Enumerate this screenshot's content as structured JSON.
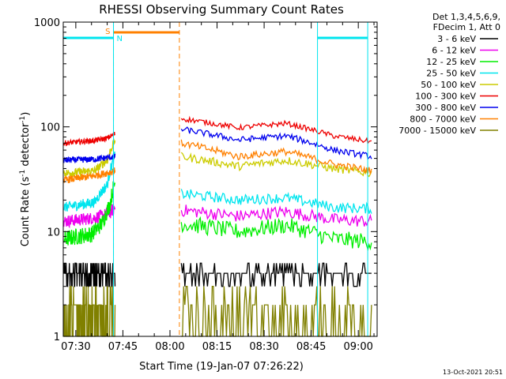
{
  "chart_data": {
    "type": "line",
    "title": "RHESSI Observing Summary Count Rates",
    "xlabel": "Start Time (19-Jan-07 07:26:22)",
    "ylabel_parts": [
      "Count Rate (s",
      "-1",
      " detector",
      "-1",
      ")"
    ],
    "y_scale": "log",
    "ylim": [
      1,
      1000
    ],
    "xlim_minutes": [
      "07:26",
      "09:06"
    ],
    "x_ticks": [
      "07:30",
      "07:45",
      "08:00",
      "08:15",
      "08:30",
      "08:45",
      "09:00"
    ],
    "y_ticks": [
      "1",
      "10",
      "100",
      "1000"
    ],
    "grid": false,
    "legend_position": "right",
    "legend_header": [
      "Det 1,3,4,5,6,9,",
      "FDecim 1, Att 0"
    ],
    "flag_labels": [
      "S",
      "N"
    ],
    "flags": [
      {
        "label": "S",
        "color": "#ff8000",
        "style": "dashed",
        "start": "07:42",
        "end": "08:03"
      },
      {
        "label": "N",
        "color": "#00e5ee",
        "style": "solid",
        "start": "07:26",
        "end": "07:42"
      },
      {
        "label": "N",
        "color": "#00e5ee",
        "style": "solid",
        "start": "08:47",
        "end": "09:03"
      }
    ],
    "data_gap": [
      "07:43",
      "08:03"
    ],
    "series": [
      {
        "name": "3 - 6 keV",
        "color": "#000000",
        "pre": [
          [
            0,
            4.0
          ],
          [
            0.5,
            4.2
          ],
          [
            1,
            4.5
          ]
        ],
        "post": [
          [
            0,
            5.5
          ],
          [
            0.3,
            5.0
          ],
          [
            0.5,
            4.5
          ],
          [
            0.75,
            4.0
          ],
          [
            1,
            3.8
          ]
        ],
        "noise": 0.14
      },
      {
        "name": "6 - 12 keV",
        "color": "#ee00ee",
        "pre": [
          [
            0,
            12.5
          ],
          [
            0.6,
            13.5
          ],
          [
            0.9,
            15
          ],
          [
            1,
            17
          ]
        ],
        "post": [
          [
            0,
            16
          ],
          [
            0.3,
            14
          ],
          [
            0.55,
            15.5
          ],
          [
            0.8,
            13
          ],
          [
            1,
            12.5
          ]
        ],
        "noise": 0.06
      },
      {
        "name": "12 - 25 keV",
        "color": "#00ee00",
        "pre": [
          [
            0,
            8.5
          ],
          [
            0.55,
            9.5
          ],
          [
            0.75,
            12
          ],
          [
            0.9,
            18
          ],
          [
            1,
            30
          ]
        ],
        "post": [
          [
            0,
            12
          ],
          [
            0.3,
            10
          ],
          [
            0.55,
            11.5
          ],
          [
            0.8,
            8.5
          ],
          [
            1,
            8
          ]
        ],
        "noise": 0.08
      },
      {
        "name": "25 - 50 keV",
        "color": "#00e5ee",
        "pre": [
          [
            0,
            17
          ],
          [
            0.6,
            19
          ],
          [
            0.85,
            28
          ],
          [
            1,
            55
          ]
        ],
        "post": [
          [
            0,
            23
          ],
          [
            0.3,
            20
          ],
          [
            0.55,
            21
          ],
          [
            0.8,
            17
          ],
          [
            1,
            16.5
          ]
        ],
        "noise": 0.05
      },
      {
        "name": "50 - 100 keV",
        "color": "#cccc00",
        "pre": [
          [
            0,
            36
          ],
          [
            0.6,
            38
          ],
          [
            0.85,
            48
          ],
          [
            1,
            75
          ]
        ],
        "post": [
          [
            0,
            52
          ],
          [
            0.3,
            42
          ],
          [
            0.55,
            48
          ],
          [
            0.8,
            40
          ],
          [
            1,
            36
          ]
        ],
        "noise": 0.04
      },
      {
        "name": "100 - 300 keV",
        "color": "#ee0000",
        "pre": [
          [
            0,
            70
          ],
          [
            0.6,
            74
          ],
          [
            0.85,
            78
          ],
          [
            1,
            86
          ]
        ],
        "post": [
          [
            0,
            120
          ],
          [
            0.3,
            98
          ],
          [
            0.55,
            108
          ],
          [
            0.8,
            82
          ],
          [
            1,
            72
          ]
        ],
        "noise": 0.025
      },
      {
        "name": "300 - 800 keV",
        "color": "#0000ee",
        "pre": [
          [
            0,
            48
          ],
          [
            0.6,
            49
          ],
          [
            1,
            52
          ]
        ],
        "post": [
          [
            0,
            95
          ],
          [
            0.3,
            75
          ],
          [
            0.55,
            82
          ],
          [
            0.8,
            60
          ],
          [
            1,
            52
          ]
        ],
        "noise": 0.03
      },
      {
        "name": "800 - 7000 keV",
        "color": "#ff8000",
        "pre": [
          [
            0,
            31
          ],
          [
            0.6,
            34
          ],
          [
            1,
            38
          ]
        ],
        "post": [
          [
            0,
            70
          ],
          [
            0.3,
            52
          ],
          [
            0.55,
            58
          ],
          [
            0.8,
            44
          ],
          [
            1,
            38
          ]
        ],
        "noise": 0.035
      },
      {
        "name": "7000 - 15000 keV",
        "color": "#808000",
        "pre": [
          [
            0,
            1.5
          ],
          [
            1,
            1.5
          ]
        ],
        "post": [
          [
            0,
            1.5
          ],
          [
            0.3,
            1.7
          ],
          [
            0.55,
            2.4
          ],
          [
            0.75,
            1.8
          ],
          [
            1,
            1.5
          ]
        ],
        "noise": 0.25
      }
    ]
  },
  "footer_date": "13-Oct-2021 20:51"
}
